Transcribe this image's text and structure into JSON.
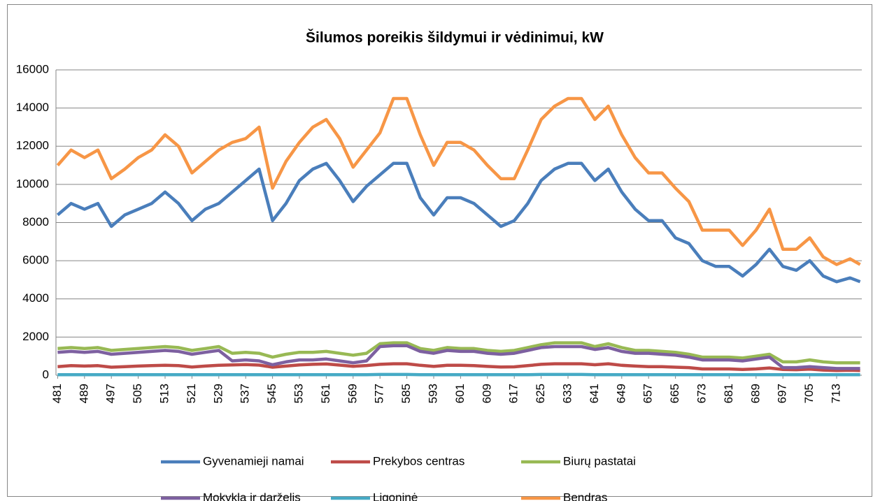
{
  "chart_data": {
    "type": "line",
    "title": "Šilumos poreikis šildymui ir vėdinimui, kW",
    "x": [
      481,
      485,
      489,
      493,
      497,
      501,
      505,
      509,
      513,
      517,
      521,
      525,
      529,
      533,
      537,
      541,
      545,
      549,
      553,
      557,
      561,
      565,
      569,
      573,
      577,
      581,
      585,
      589,
      593,
      597,
      601,
      605,
      609,
      613,
      617,
      621,
      625,
      629,
      633,
      637,
      641,
      645,
      649,
      653,
      657,
      661,
      665,
      669,
      673,
      677,
      681,
      685,
      689,
      693,
      697,
      701,
      705,
      709,
      713,
      717,
      720
    ],
    "xlim": [
      480.5,
      720.5
    ],
    "xticks": [
      481,
      489,
      497,
      505,
      513,
      521,
      529,
      537,
      545,
      553,
      561,
      569,
      577,
      585,
      593,
      601,
      609,
      617,
      625,
      633,
      641,
      649,
      657,
      665,
      673,
      681,
      689,
      697,
      705,
      713
    ],
    "ylim": [
      0,
      16000
    ],
    "yticks": [
      0,
      2000,
      4000,
      6000,
      8000,
      10000,
      12000,
      14000,
      16000
    ],
    "grid": true,
    "series": [
      {
        "name": "Gyvenamieji namai",
        "color": "#4a7ebb",
        "values": [
          8400,
          9000,
          8700,
          9000,
          7800,
          8400,
          8700,
          9000,
          9600,
          9000,
          8100,
          8700,
          9000,
          9600,
          10200,
          10800,
          8100,
          9000,
          10200,
          10800,
          11100,
          10200,
          9100,
          9900,
          10500,
          11100,
          11100,
          9300,
          8400,
          9300,
          9300,
          9000,
          8400,
          7800,
          8100,
          9000,
          10200,
          10800,
          11100,
          11100,
          10200,
          10800,
          9600,
          8700,
          8100,
          8100,
          7200,
          6900,
          6000,
          5700,
          5700,
          5200,
          5800,
          6600,
          5700,
          5500,
          6000,
          5200,
          4900,
          5100,
          4900
        ]
      },
      {
        "name": "Prekybos centras",
        "color": "#be4b48",
        "values": [
          450,
          500,
          480,
          500,
          420,
          450,
          480,
          500,
          520,
          500,
          430,
          480,
          520,
          540,
          560,
          530,
          420,
          480,
          540,
          570,
          590,
          530,
          470,
          510,
          570,
          600,
          600,
          520,
          460,
          520,
          520,
          500,
          460,
          430,
          440,
          500,
          570,
          600,
          600,
          600,
          550,
          600,
          520,
          480,
          450,
          450,
          420,
          400,
          330,
          330,
          330,
          300,
          330,
          380,
          300,
          290,
          320,
          270,
          250,
          260,
          250
        ]
      },
      {
        "name": "Biurų pastatai",
        "color": "#98b954",
        "values": [
          1400,
          1450,
          1400,
          1450,
          1300,
          1350,
          1400,
          1450,
          1500,
          1450,
          1300,
          1400,
          1500,
          1150,
          1200,
          1150,
          950,
          1100,
          1200,
          1200,
          1250,
          1150,
          1050,
          1150,
          1650,
          1700,
          1700,
          1400,
          1300,
          1450,
          1400,
          1400,
          1300,
          1250,
          1300,
          1450,
          1600,
          1700,
          1700,
          1700,
          1500,
          1650,
          1450,
          1300,
          1300,
          1250,
          1200,
          1100,
          950,
          950,
          950,
          900,
          1000,
          1100,
          700,
          700,
          800,
          700,
          650,
          650,
          650
        ]
      },
      {
        "name": "Mokykla ir darželis",
        "color": "#7d60a0",
        "values": [
          1200,
          1250,
          1200,
          1250,
          1100,
          1150,
          1200,
          1250,
          1300,
          1250,
          1100,
          1200,
          1300,
          750,
          800,
          750,
          550,
          700,
          800,
          800,
          850,
          750,
          650,
          750,
          1500,
          1550,
          1550,
          1250,
          1150,
          1300,
          1250,
          1250,
          1150,
          1100,
          1150,
          1300,
          1450,
          1500,
          1500,
          1500,
          1350,
          1450,
          1250,
          1150,
          1150,
          1100,
          1050,
          950,
          800,
          800,
          800,
          750,
          850,
          950,
          400,
          400,
          450,
          400,
          350,
          350,
          350
        ]
      },
      {
        "name": "Ligoninė",
        "color": "#46aac5",
        "values": [
          30,
          30,
          30,
          30,
          30,
          30,
          30,
          30,
          30,
          30,
          30,
          30,
          30,
          30,
          30,
          30,
          30,
          30,
          30,
          30,
          30,
          30,
          30,
          30,
          40,
          40,
          40,
          30,
          30,
          30,
          30,
          30,
          30,
          30,
          30,
          30,
          40,
          40,
          40,
          40,
          30,
          30,
          30,
          30,
          30,
          30,
          30,
          30,
          30,
          30,
          30,
          30,
          30,
          30,
          30,
          30,
          30,
          30,
          30,
          30,
          30
        ]
      },
      {
        "name": "Bendras",
        "color": "#f79646",
        "values": [
          11000,
          11800,
          11400,
          11800,
          10300,
          10800,
          11400,
          11800,
          12600,
          12000,
          10600,
          11200,
          11800,
          12200,
          12400,
          13000,
          9800,
          11200,
          12200,
          13000,
          13400,
          12400,
          10900,
          11800,
          12700,
          14500,
          14500,
          12600,
          11000,
          12200,
          12200,
          11800,
          11000,
          10300,
          10300,
          11800,
          13400,
          14100,
          14500,
          14500,
          13400,
          14100,
          12600,
          11400,
          10600,
          10600,
          9800,
          9100,
          7600,
          7600,
          7600,
          6800,
          7600,
          8700,
          6600,
          6600,
          7200,
          6200,
          5800,
          6100,
          5800
        ]
      }
    ]
  }
}
